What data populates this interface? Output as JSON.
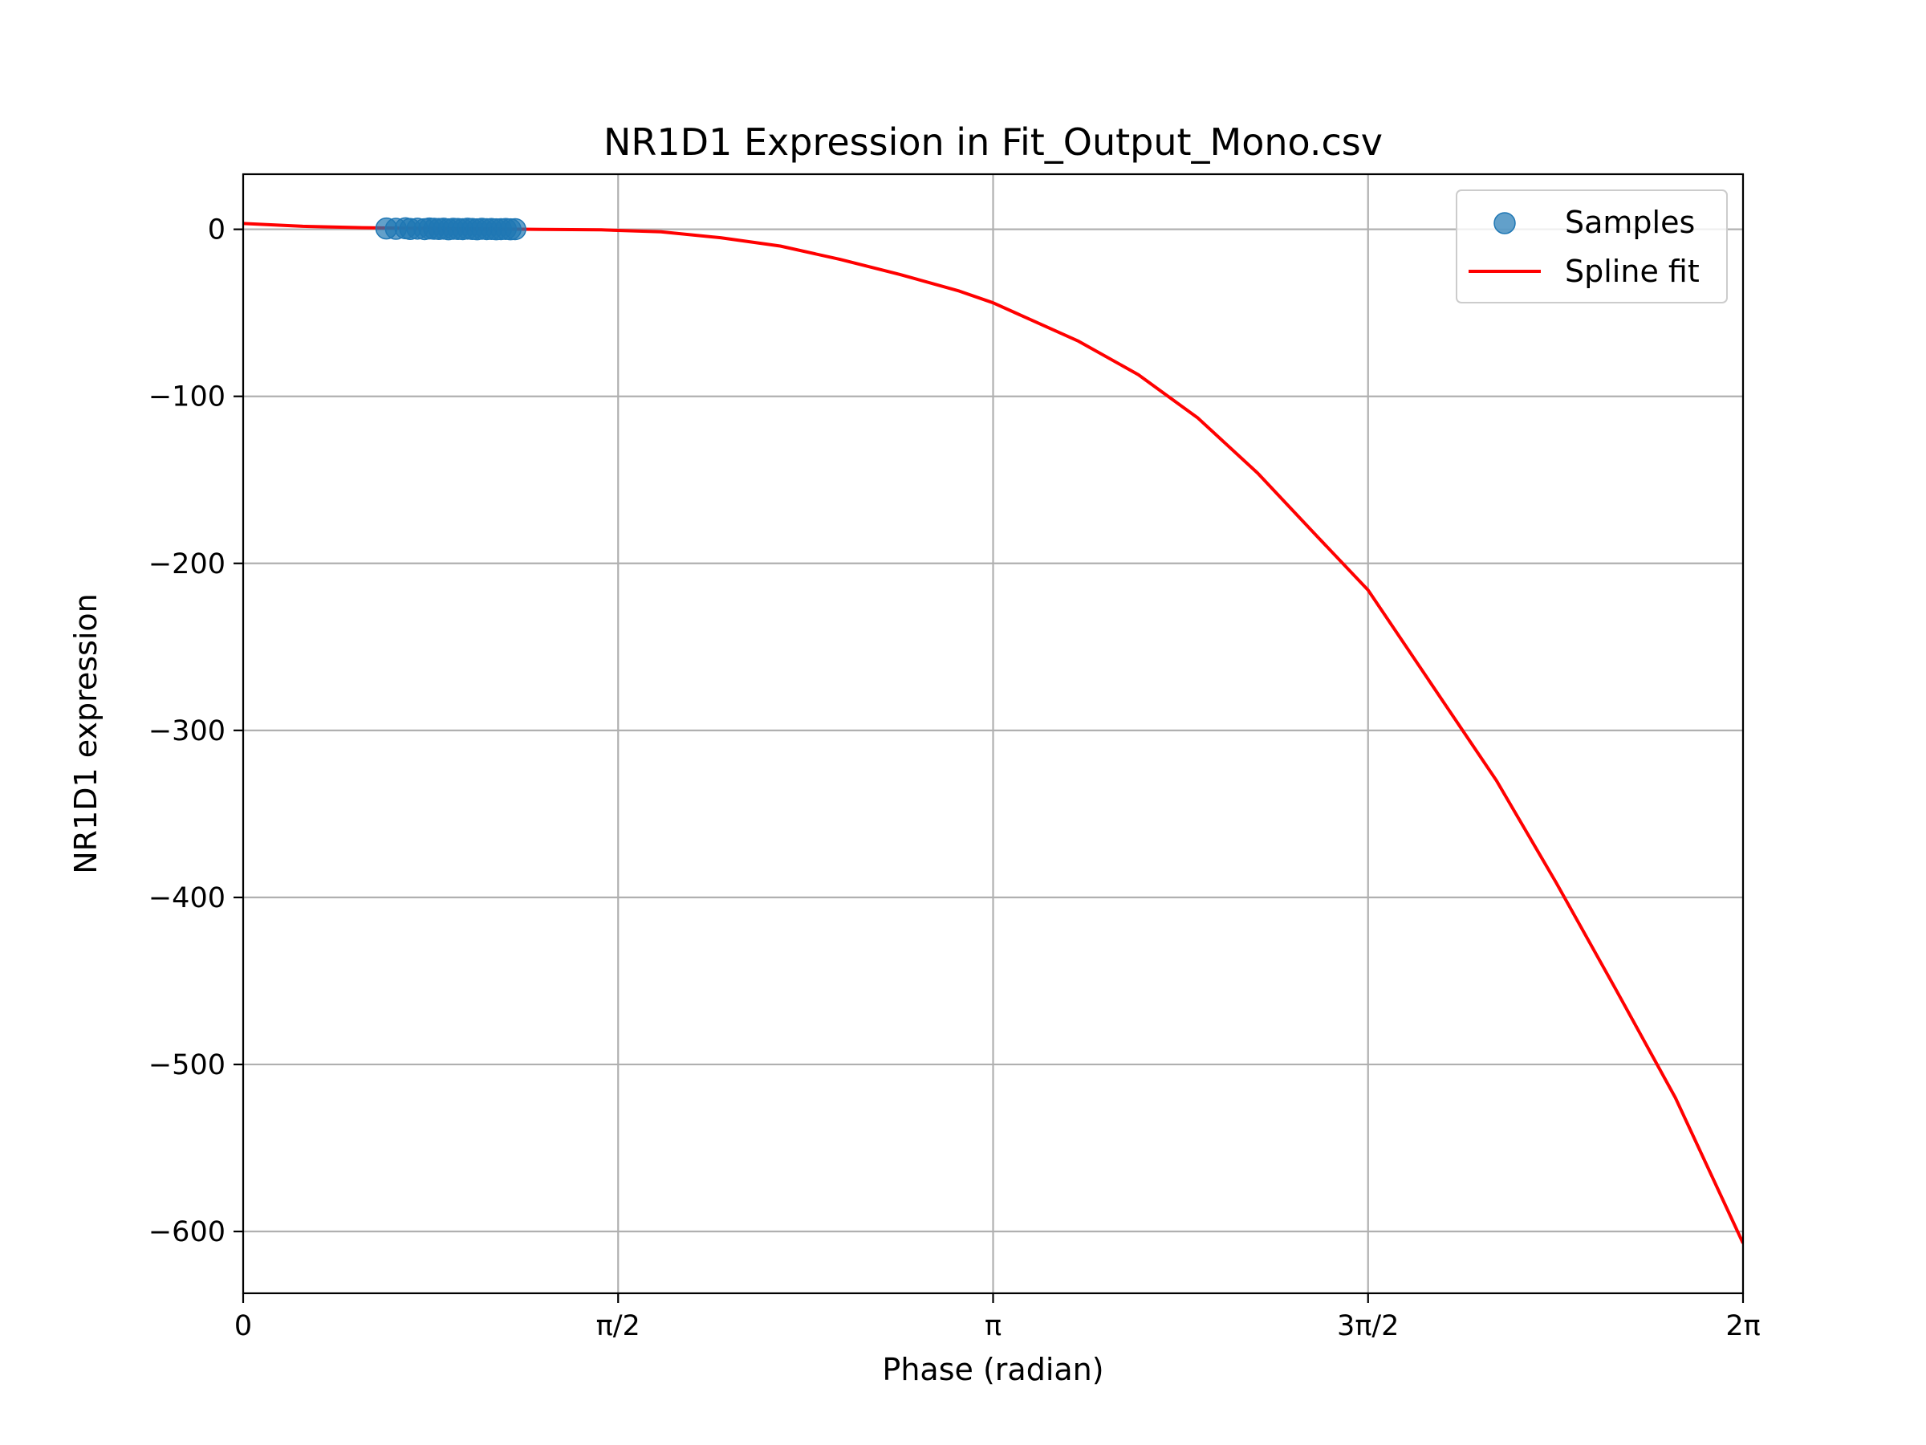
{
  "chart_data": {
    "type": "scatter",
    "title": "NR1D1 Expression in Fit_Output_Mono.csv",
    "xlabel": "Phase (radian)",
    "ylabel": "NR1D1 expression",
    "xlim": [
      0,
      6.283185307
    ],
    "ylim": [
      -637,
      33
    ],
    "grid": true,
    "legend_position": "top-right",
    "x_ticks": [
      {
        "value": 0,
        "label": "0"
      },
      {
        "value": 1.570796327,
        "label": "π/2"
      },
      {
        "value": 3.141592654,
        "label": "π"
      },
      {
        "value": 4.71238898,
        "label": "3π/2"
      },
      {
        "value": 6.283185307,
        "label": "2π"
      }
    ],
    "y_ticks": [
      {
        "value": 0,
        "label": "0"
      },
      {
        "value": -100,
        "label": "−100"
      },
      {
        "value": -200,
        "label": "−200"
      },
      {
        "value": -300,
        "label": "−300"
      },
      {
        "value": -400,
        "label": "−400"
      },
      {
        "value": -500,
        "label": "−500"
      },
      {
        "value": -600,
        "label": "−600"
      }
    ],
    "series": [
      {
        "name": "Samples",
        "kind": "scatter",
        "color": "#1f77b4",
        "x": [
          0.6,
          0.64,
          0.68,
          0.7,
          0.73,
          0.76,
          0.78,
          0.8,
          0.82,
          0.84,
          0.86,
          0.88,
          0.9,
          0.92,
          0.94,
          0.96,
          0.98,
          1.0,
          1.02,
          1.04,
          1.06,
          1.08,
          1.1,
          1.12,
          1.14
        ],
        "y": [
          0.5,
          0.3,
          0.6,
          0.2,
          0.4,
          0.1,
          0.5,
          0.3,
          0.2,
          0.4,
          0.0,
          0.3,
          0.2,
          0.1,
          0.4,
          0.2,
          0.0,
          0.3,
          0.1,
          0.2,
          0.0,
          0.1,
          0.2,
          0.0,
          0.1
        ]
      },
      {
        "name": "Spline fit",
        "kind": "line",
        "color": "#ff0000",
        "x": [
          0.0,
          0.25,
          0.5,
          0.75,
          1.0,
          1.25,
          1.5,
          1.75,
          2.0,
          2.25,
          2.5,
          2.75,
          3.0,
          3.1416,
          3.5,
          3.75,
          4.0,
          4.25,
          4.5,
          4.7124,
          5.0,
          5.25,
          5.5,
          5.75,
          6.0,
          6.2832
        ],
        "y": [
          3.5,
          1.8,
          1.0,
          0.6,
          0.3,
          0.0,
          -0.3,
          -1.5,
          -5,
          -10,
          -18,
          -27,
          -37,
          -44,
          -67,
          -87,
          -113,
          -146,
          -184,
          -216,
          -277,
          -330,
          -391,
          -455,
          -520,
          -607
        ]
      }
    ]
  }
}
